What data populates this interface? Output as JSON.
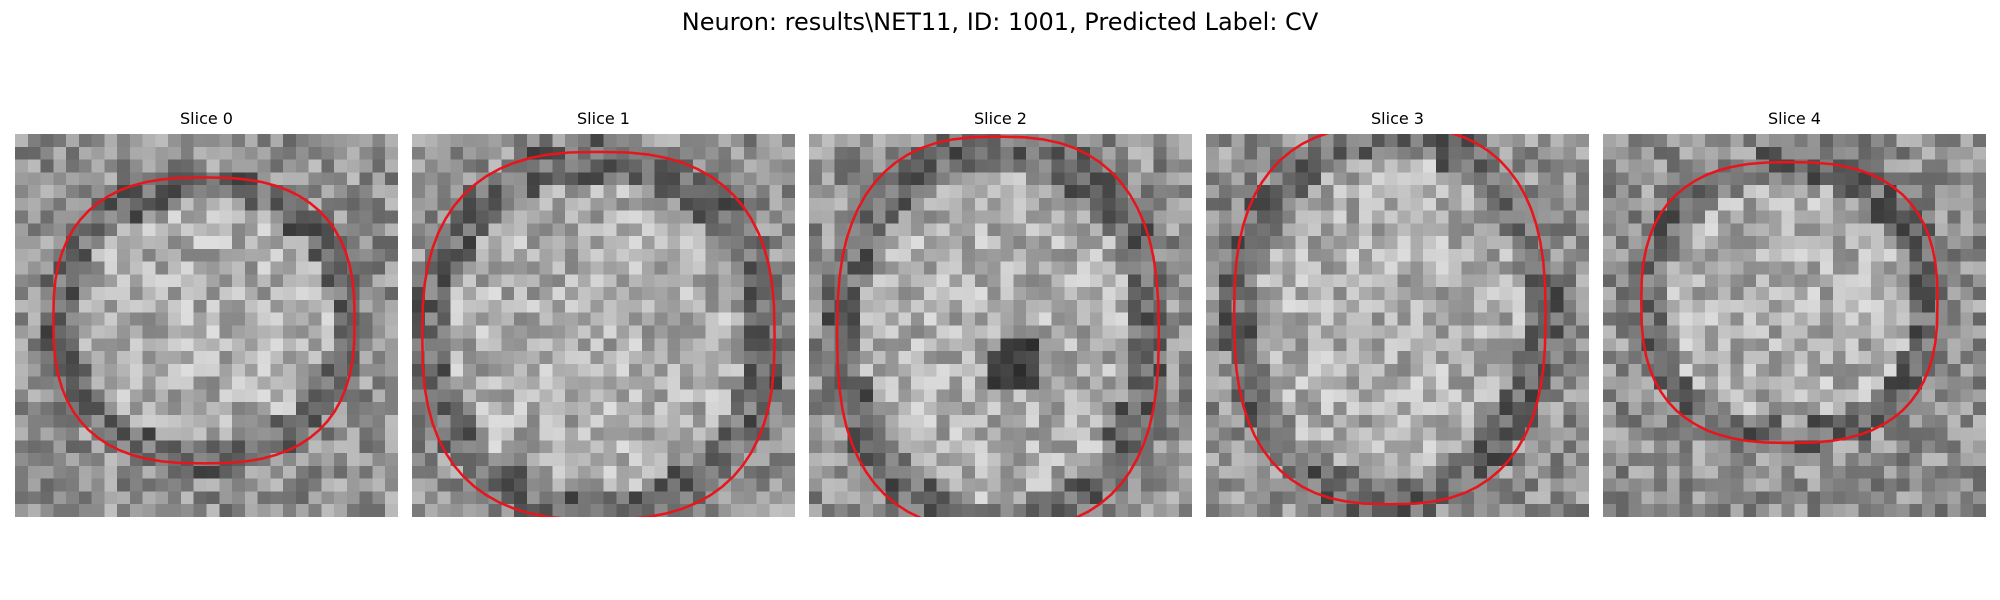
{
  "title": "Neuron: results\\NET11, ID: 1001, Predicted Label: CV",
  "colors": {
    "contour": "#e8151c",
    "background": "#ffffff",
    "colormap": "gray"
  },
  "slices": [
    {
      "label": "Slice 0"
    },
    {
      "label": "Slice 1"
    },
    {
      "label": "Slice 2"
    },
    {
      "label": "Slice 3"
    },
    {
      "label": "Slice 4"
    }
  ]
}
